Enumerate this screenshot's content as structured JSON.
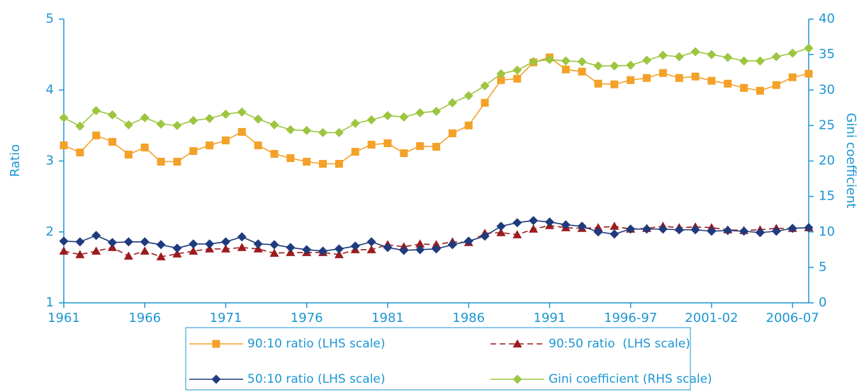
{
  "chart_data": {
    "type": "line",
    "ylabel": "Ratio",
    "y2label": "Gini coefficient",
    "categories": [
      "1961",
      null,
      null,
      null,
      null,
      "1966",
      null,
      null,
      null,
      null,
      "1971",
      null,
      null,
      null,
      null,
      "1976",
      null,
      null,
      null,
      null,
      "1981",
      null,
      null,
      null,
      null,
      "1986",
      null,
      null,
      null,
      null,
      "1991",
      null,
      null,
      null,
      null,
      "1996-97",
      null,
      null,
      null,
      null,
      "2001-02",
      null,
      null,
      null,
      null,
      "2006-07",
      null
    ],
    "ylim": [
      1,
      5
    ],
    "yticks": [
      1,
      2,
      3,
      4,
      5
    ],
    "y2lim": [
      0,
      40
    ],
    "y2ticks": [
      0,
      5,
      10,
      15,
      20,
      25,
      30,
      35,
      40
    ],
    "legend": "bottom",
    "series": [
      {
        "name": "90:10 ratio (LHS scale)",
        "color": "#f3a128",
        "marker": "square",
        "dash": "solid",
        "values": [
          3.22,
          3.12,
          3.36,
          3.27,
          3.09,
          3.19,
          2.99,
          2.99,
          3.14,
          3.22,
          3.29,
          3.41,
          3.22,
          3.1,
          3.04,
          2.99,
          2.96,
          2.96,
          3.13,
          3.23,
          3.25,
          3.11,
          3.21,
          3.2,
          3.39,
          3.5,
          3.82,
          4.14,
          4.16,
          4.39,
          4.46,
          4.29,
          4.26,
          4.09,
          4.08,
          4.14,
          4.17,
          4.24,
          4.17,
          4.19,
          4.13,
          4.09,
          4.03,
          3.99,
          4.07,
          4.18,
          4.23
        ]
      },
      {
        "name": "90:50 ratio  (LHS scale)",
        "color": "#9b1b1f",
        "marker": "triangle",
        "dash": "dashed",
        "values": [
          1.73,
          1.68,
          1.73,
          1.78,
          1.66,
          1.73,
          1.65,
          1.69,
          1.73,
          1.76,
          1.76,
          1.78,
          1.76,
          1.7,
          1.71,
          1.71,
          1.71,
          1.68,
          1.75,
          1.75,
          1.82,
          1.79,
          1.83,
          1.82,
          1.86,
          1.85,
          1.98,
          1.99,
          1.96,
          2.04,
          2.09,
          2.06,
          2.05,
          2.06,
          2.08,
          2.04,
          2.05,
          2.08,
          2.06,
          2.07,
          2.06,
          2.03,
          2.02,
          2.03,
          2.05,
          2.05,
          2.06
        ]
      },
      {
        "name": "50:10 ratio (LHS scale)",
        "color": "#1f3b7d",
        "marker": "diamond",
        "dash": "solid",
        "values": [
          1.87,
          1.86,
          1.95,
          1.85,
          1.86,
          1.86,
          1.82,
          1.77,
          1.83,
          1.83,
          1.86,
          1.93,
          1.83,
          1.82,
          1.78,
          1.75,
          1.73,
          1.76,
          1.8,
          1.86,
          1.78,
          1.74,
          1.75,
          1.76,
          1.82,
          1.87,
          1.94,
          2.08,
          2.13,
          2.16,
          2.14,
          2.1,
          2.08,
          2.0,
          1.97,
          2.04,
          2.04,
          2.04,
          2.03,
          2.03,
          2.01,
          2.02,
          2.01,
          1.99,
          2.01,
          2.05,
          2.06
        ]
      },
      {
        "name": "Gini coefficient (RHS scale)",
        "color": "#9dc540",
        "marker": "diamond",
        "dash": "solid",
        "axis": "y2",
        "values": [
          26.1,
          24.9,
          27.1,
          26.5,
          25.1,
          26.1,
          25.2,
          25.0,
          25.7,
          26.0,
          26.6,
          26.9,
          25.9,
          25.1,
          24.4,
          24.3,
          24.0,
          24.0,
          25.3,
          25.8,
          26.4,
          26.2,
          26.8,
          27.0,
          28.2,
          29.2,
          30.6,
          32.3,
          32.8,
          34.0,
          34.3,
          34.1,
          34.0,
          33.4,
          33.4,
          33.5,
          34.2,
          34.9,
          34.7,
          35.4,
          35.0,
          34.6,
          34.1,
          34.1,
          34.7,
          35.2,
          35.9
        ]
      }
    ]
  }
}
